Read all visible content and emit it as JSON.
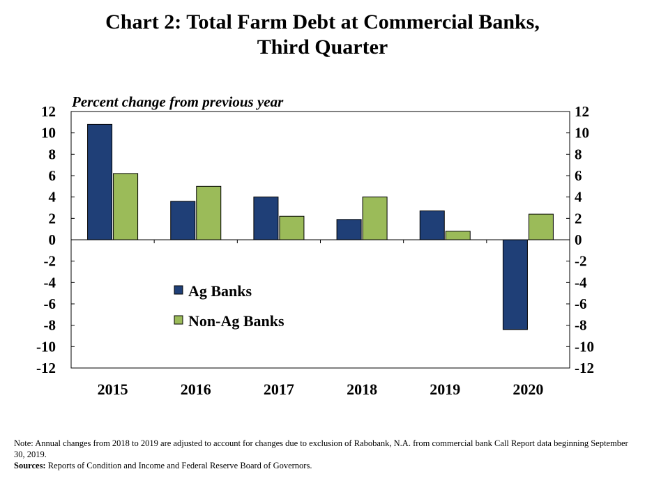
{
  "title_lines": [
    "Chart 2: Total Farm Debt at Commercial Banks,",
    "Third Quarter"
  ],
  "chart_data": {
    "type": "bar",
    "title": "Chart 2: Total Farm Debt at Commercial Banks, Third Quarter",
    "ylabel": "Percent change from previous year",
    "xlabel": "",
    "categories": [
      "2015",
      "2016",
      "2017",
      "2018",
      "2019",
      "2020"
    ],
    "series": [
      {
        "name": "Ag Banks",
        "color": "#1f3f77",
        "values": [
          10.8,
          3.6,
          4.0,
          1.9,
          2.7,
          -8.4
        ]
      },
      {
        "name": "Non-Ag Banks",
        "color": "#9bbb59",
        "values": [
          6.2,
          5.0,
          2.2,
          4.0,
          0.8,
          2.4
        ]
      }
    ],
    "ylim": [
      -12,
      12
    ],
    "yticks": [
      "12",
      "10",
      "8",
      "6",
      "4",
      "2",
      "0",
      "-2",
      "-4",
      "-6",
      "-8",
      "-10",
      "-12"
    ],
    "secondary_axis": true,
    "grid": false,
    "legend_position": "inside-left"
  },
  "notes": {
    "note": "Note: Annual changes from 2018 to 2019 are adjusted to account for changes due to exclusion of Rabobank, N.A. from commercial bank Call Report data beginning  September 30, 2019.",
    "sources_label": "Sources:",
    "sources_text": " Reports of Condition and Income and Federal Reserve Board of Governors."
  }
}
